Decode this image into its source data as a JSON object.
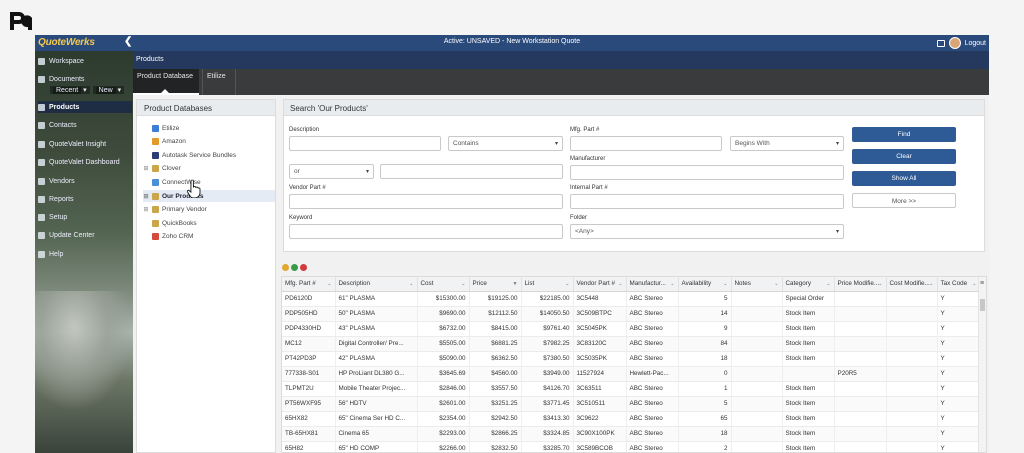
{
  "app": {
    "logo": "QuoteWerks",
    "collapse_glyph": "❮",
    "window_title": "Active: UNSAVED - New Workstation Quote",
    "logout": "Logout"
  },
  "sidebar": {
    "items": [
      {
        "label": "Workspace"
      },
      {
        "label": "Documents"
      },
      {
        "label": "Products"
      },
      {
        "label": "Contacts"
      },
      {
        "label": "QuoteValet Insight"
      },
      {
        "label": "QuoteValet Dashboard"
      },
      {
        "label": "Vendors"
      },
      {
        "label": "Reports"
      },
      {
        "label": "Setup"
      },
      {
        "label": "Update Center"
      },
      {
        "label": "Help"
      }
    ],
    "recent": "Recent",
    "new": "New"
  },
  "section_title": "Products",
  "tabs": [
    {
      "label": "Product Database"
    },
    {
      "label": "Etilize"
    }
  ],
  "product_databases": {
    "title": "Product Databases",
    "items": [
      {
        "label": "Etilize",
        "color": "#3b7dd8"
      },
      {
        "label": "Amazon",
        "color": "#e39a2b"
      },
      {
        "label": "Autotask Service Bundles",
        "color": "#2d3e76"
      },
      {
        "label": "Clover",
        "color": "#c9a64a"
      },
      {
        "label": "ConnectWise",
        "color": "#4a90d9"
      },
      {
        "label": "Our Products",
        "color": "#c9a64a"
      },
      {
        "label": "Primary Vendor",
        "color": "#c9a64a"
      },
      {
        "label": "QuickBooks",
        "color": "#c9a64a"
      },
      {
        "label": "Zoho CRM",
        "color": "#d64a3b"
      }
    ]
  },
  "search": {
    "title": "Search 'Our Products'",
    "description_label": "Description",
    "contains": "Contains",
    "or": "or",
    "vendor_part_label": "Vendor Part #",
    "keyword_label": "Keyword",
    "mfg_part_label": "Mfg. Part #",
    "begins_with": "Begins With",
    "manufacturer_label": "Manufacturer",
    "internal_part_label": "Internal Part #",
    "folder_label": "Folder",
    "folder_value": "<Any>",
    "find": "Find",
    "clear": "Clear",
    "show_all": "Show All",
    "more": "More >>"
  },
  "grid": {
    "columns": [
      "Mfg. Part #",
      "Description",
      "Cost",
      "Price",
      "List",
      "Vendor Part #",
      "Manufactur...",
      "Availability",
      "Notes",
      "Category",
      "Price Modifie...",
      "Cost Modifie...",
      "Tax Code"
    ],
    "rows": [
      [
        "PD6120D",
        "61\" PLASMA",
        "$15300.00",
        "$19125.00",
        "$22185.00",
        "3C5448",
        "ABC Stereo",
        "5",
        "",
        "Special Order",
        "",
        "",
        "Y"
      ],
      [
        "PDP505HD",
        "50\" PLASMA",
        "$9690.00",
        "$12112.50",
        "$14050.50",
        "3C509BTPC",
        "ABC Stereo",
        "14",
        "",
        "Stock Item",
        "",
        "",
        "Y"
      ],
      [
        "PDP4330HD",
        "43\" PLASMA",
        "$6732.00",
        "$8415.00",
        "$9761.40",
        "3C5045PK",
        "ABC Stereo",
        "9",
        "",
        "Stock Item",
        "",
        "",
        "Y"
      ],
      [
        "MC12",
        "Digital Controller/ Pre...",
        "$5505.00",
        "$6881.25",
        "$7982.25",
        "3C83120C",
        "ABC Stereo",
        "84",
        "",
        "Stock Item",
        "",
        "",
        "Y"
      ],
      [
        "PT42PD3P",
        "42\" PLASMA",
        "$5090.00",
        "$6362.50",
        "$7380.50",
        "3C5035PK",
        "ABC Stereo",
        "18",
        "",
        "Stock Item",
        "",
        "",
        "Y"
      ],
      [
        "777338-S01",
        "HP ProLiant DL380 G...",
        "$3645.69",
        "$4560.00",
        "$3949.00",
        "11527924",
        "Hewlett-Pac...",
        "0",
        "",
        "",
        "P20R5",
        "",
        "Y"
      ],
      [
        "TLPMT2U",
        "Mobile Theater Projec...",
        "$2846.00",
        "$3557.50",
        "$4126.70",
        "3C63511",
        "ABC Stereo",
        "1",
        "",
        "Stock Item",
        "",
        "",
        "Y"
      ],
      [
        "PT56WXF95",
        "56\" HDTV",
        "$2601.00",
        "$3251.25",
        "$3771.45",
        "3C510511",
        "ABC Stereo",
        "5",
        "",
        "Stock Item",
        "",
        "",
        "Y"
      ],
      [
        "65HX82",
        "65\" Cinema Ser HD C...",
        "$2354.00",
        "$2942.50",
        "$3413.30",
        "3C9622",
        "ABC Stereo",
        "65",
        "",
        "Stock Item",
        "",
        "",
        "Y"
      ],
      [
        "TB-65HX81",
        "Cinema 65",
        "$2293.00",
        "$2866.25",
        "$3324.85",
        "3C90X100PK",
        "ABC Stereo",
        "18",
        "",
        "Stock Item",
        "",
        "",
        "Y"
      ],
      [
        "65H82",
        "65\" HD COMP",
        "$2266.00",
        "$2832.50",
        "$3285.70",
        "3C589BCOB",
        "ABC Stereo",
        "2",
        "",
        "Stock Item",
        "",
        "",
        "Y"
      ]
    ]
  },
  "colors": {
    "topbar": "#2b4a7c",
    "primary_button": "#2e5a95",
    "logo": "#f2c94c"
  }
}
